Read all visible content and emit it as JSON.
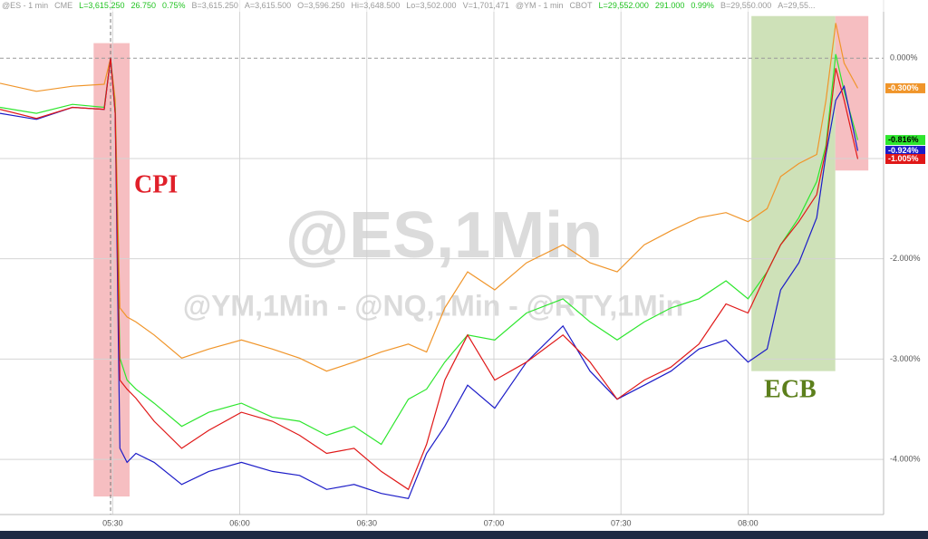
{
  "header": {
    "items": [
      "@ES - 1 min",
      "CME",
      "L=3,615.250",
      "26.750",
      "0.75%",
      "B=3,615.250",
      "A=3,615.500",
      "O=3,596.250",
      "Hi=3,648.500",
      "Lo=3,502.000",
      "V=1,701,471",
      "@YM - 1 min",
      "CBOT",
      "L=29,552.000",
      "291.000",
      "0.99%",
      "B=29,550.000",
      "A=29,55..."
    ],
    "colors": [
      "#9a9a9a",
      "#9a9a9a",
      "#22c322",
      "#22c322",
      "#22c322",
      "#9a9a9a",
      "#9a9a9a",
      "#9a9a9a",
      "#9a9a9a",
      "#9a9a9a",
      "#9a9a9a",
      "#9a9a9a",
      "#9a9a9a",
      "#22c322",
      "#22c322",
      "#22c322",
      "#9a9a9a",
      "#9a9a9a"
    ]
  },
  "chart_data": {
    "type": "line",
    "watermark": "@ES,1Min",
    "subwatermark": "@YM,1Min - @NQ,1Min - @RTY,1Min",
    "x": [
      303.4,
      312.0,
      320.5,
      328.0,
      329.5,
      330.6,
      331.7,
      333.4,
      335.5,
      339.8,
      346.3,
      352.7,
      360.4,
      367.7,
      374.1,
      380.5,
      387.0,
      393.4,
      399.8,
      404.1,
      408.4,
      413.8,
      420.2,
      427.7,
      436.3,
      442.7,
      449.1,
      455.5,
      461.8,
      468.4,
      474.8,
      480.0,
      484.5,
      487.7,
      492.0,
      496.2,
      498.4,
      500.7,
      502.7,
      505.9
    ],
    "xlim": [
      303.4,
      512
    ],
    "xticks": [
      {
        "value": 330,
        "label": "05:30"
      },
      {
        "value": 360,
        "label": "06:00"
      },
      {
        "value": 390,
        "label": "06:30"
      },
      {
        "value": 420,
        "label": "07:00"
      },
      {
        "value": 450,
        "label": "07:30"
      },
      {
        "value": 480,
        "label": "08:00"
      }
    ],
    "ylim": [
      -4.55,
      0.58
    ],
    "yticks": [
      {
        "value": 0,
        "label": "0.000%"
      },
      {
        "value": -1,
        "label": "-1.000%"
      },
      {
        "value": -2,
        "label": "-2.000%"
      },
      {
        "value": -3,
        "label": "-3.000%"
      },
      {
        "value": -4,
        "label": "-4.000%"
      }
    ],
    "grid": true,
    "vline": 329.5,
    "highlights": [
      {
        "start": 325.5,
        "end": 334,
        "top": 0.15,
        "bottom": -4.37,
        "color": "#f4b3b6",
        "label": "CPI",
        "label_color": "#e0202a"
      },
      {
        "start": 480.8,
        "end": 500.6,
        "top": 0.42,
        "bottom": -3.12,
        "color": "#c5dcab",
        "label": "ECB",
        "label_color": "#5c7f1c"
      },
      {
        "start": 500.6,
        "end": 508.4,
        "top": 0.42,
        "bottom": -1.12,
        "color": "#f4b3b6"
      }
    ],
    "series": [
      {
        "name": "ES",
        "color": "#f0952a",
        "values": [
          -0.25,
          -0.33,
          -0.28,
          -0.26,
          0,
          -0.42,
          -2.49,
          -2.58,
          -2.63,
          -2.76,
          -2.99,
          -2.9,
          -2.81,
          -2.9,
          -2.99,
          -3.12,
          -3.03,
          -2.93,
          -2.85,
          -2.93,
          -2.49,
          -2.13,
          -2.31,
          -2.04,
          -1.86,
          -2.04,
          -2.13,
          -1.86,
          -1.72,
          -1.59,
          -1.54,
          -1.63,
          -1.5,
          -1.18,
          -1.05,
          -0.96,
          -0.42,
          0.35,
          -0.05,
          -0.3
        ],
        "value_labels": [
          null,
          null,
          null,
          null,
          null,
          null,
          null,
          null,
          null,
          null,
          null,
          null,
          null,
          null,
          null,
          null,
          null,
          null,
          null,
          null,
          null,
          null,
          null,
          null,
          null,
          null,
          null,
          null,
          null,
          null,
          null,
          null,
          null,
          null,
          null,
          null,
          null,
          null,
          null,
          "-0.300%"
        ]
      },
      {
        "name": "YM",
        "color": "#2ee62e",
        "values": [
          -0.49,
          -0.55,
          -0.46,
          -0.49,
          0,
          -0.51,
          -2.99,
          -3.21,
          -3.3,
          -3.44,
          -3.67,
          -3.53,
          -3.44,
          -3.58,
          -3.62,
          -3.76,
          -3.67,
          -3.85,
          -3.4,
          -3.3,
          -3.03,
          -2.76,
          -2.81,
          -2.54,
          -2.4,
          -2.63,
          -2.81,
          -2.63,
          -2.49,
          -2.4,
          -2.22,
          -2.4,
          -2.13,
          -1.86,
          -1.59,
          -1.23,
          -0.87,
          0.04,
          -0.33,
          -0.816
        ],
        "value_labels": [
          null,
          null,
          null,
          null,
          null,
          null,
          null,
          null,
          null,
          null,
          null,
          null,
          null,
          null,
          null,
          null,
          null,
          null,
          null,
          null,
          null,
          null,
          null,
          null,
          null,
          null,
          null,
          null,
          null,
          null,
          null,
          null,
          null,
          null,
          null,
          null,
          null,
          null,
          null,
          "-0.816%"
        ]
      },
      {
        "name": "NQ",
        "color": "#1c1cc8",
        "values": [
          -0.55,
          -0.61,
          -0.49,
          -0.51,
          0,
          -0.55,
          -3.89,
          -4.03,
          -3.94,
          -4.03,
          -4.25,
          -4.12,
          -4.03,
          -4.12,
          -4.16,
          -4.3,
          -4.25,
          -4.34,
          -4.39,
          -3.94,
          -3.67,
          -3.26,
          -3.49,
          -3.03,
          -2.67,
          -3.12,
          -3.4,
          -3.26,
          -3.12,
          -2.9,
          -2.81,
          -3.03,
          -2.9,
          -2.31,
          -2.04,
          -1.59,
          -0.96,
          -0.42,
          -0.28,
          -0.924
        ],
        "value_labels": [
          null,
          null,
          null,
          null,
          null,
          null,
          null,
          null,
          null,
          null,
          null,
          null,
          null,
          null,
          null,
          null,
          null,
          null,
          null,
          null,
          null,
          null,
          null,
          null,
          null,
          null,
          null,
          null,
          null,
          null,
          null,
          null,
          null,
          null,
          null,
          null,
          null,
          null,
          null,
          "-0.924%"
        ]
      },
      {
        "name": "RTY",
        "color": "#e01818",
        "values": [
          -0.51,
          -0.6,
          -0.49,
          -0.51,
          0,
          -0.55,
          -3.21,
          -3.3,
          -3.39,
          -3.62,
          -3.89,
          -3.71,
          -3.53,
          -3.62,
          -3.76,
          -3.94,
          -3.89,
          -4.12,
          -4.3,
          -3.85,
          -3.21,
          -2.76,
          -3.21,
          -3.03,
          -2.76,
          -3.03,
          -3.4,
          -3.21,
          -3.08,
          -2.85,
          -2.45,
          -2.54,
          -2.13,
          -1.86,
          -1.63,
          -1.36,
          -0.91,
          -0.1,
          -0.42,
          -1.005
        ],
        "value_labels": [
          null,
          null,
          null,
          null,
          null,
          null,
          null,
          null,
          null,
          null,
          null,
          null,
          null,
          null,
          null,
          null,
          null,
          null,
          null,
          null,
          null,
          null,
          null,
          null,
          null,
          null,
          null,
          null,
          null,
          null,
          null,
          null,
          null,
          null,
          null,
          null,
          null,
          null,
          null,
          "-1.005%"
        ]
      }
    ]
  }
}
